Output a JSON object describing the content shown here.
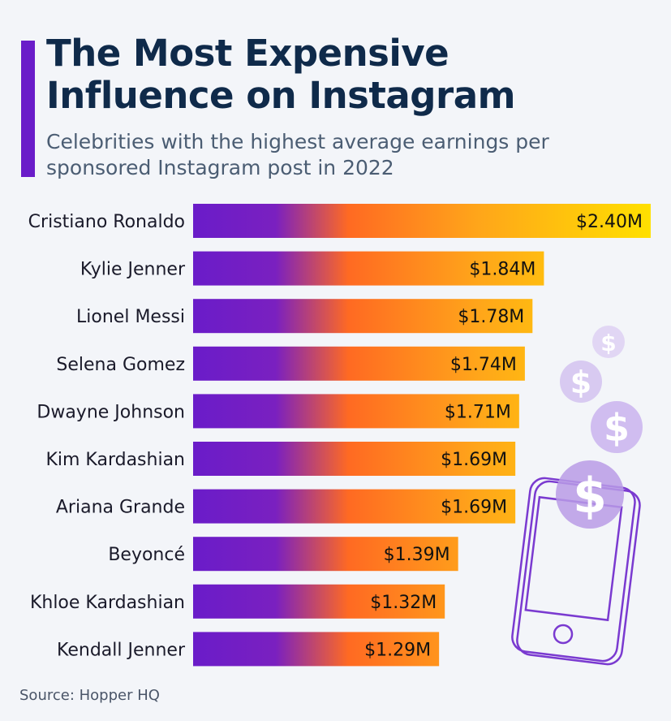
{
  "header": {
    "title": "The Most Expensive Influence on Instagram",
    "subtitle": "Celebrities with the highest average earnings per sponsored Instagram post in 2022"
  },
  "footer": {
    "source": "Source: Hopper HQ"
  },
  "illustration": {
    "icons": [
      "dollar-coin-icon",
      "smartphone-icon"
    ]
  },
  "colors": {
    "accent": "#6a1cc9",
    "gradient_start": "#6a1cc9",
    "gradient_mid": "#ff7a1a",
    "gradient_end": "#ffe000"
  },
  "chart_data": {
    "type": "bar",
    "orientation": "horizontal",
    "title": "The Most Expensive Influence on Instagram",
    "subtitle": "Celebrities with the highest average earnings per sponsored Instagram post in 2022",
    "categories": [
      "Cristiano Ronaldo",
      "Kylie Jenner",
      "Lionel Messi",
      "Selena Gomez",
      "Dwayne Johnson",
      "Kim Kardashian",
      "Ariana Grande",
      "Beyoncé",
      "Khloe Kardashian",
      "Kendall Jenner"
    ],
    "values": [
      2.4,
      1.84,
      1.78,
      1.74,
      1.71,
      1.69,
      1.69,
      1.39,
      1.32,
      1.29
    ],
    "value_labels": [
      "$2.40M",
      "$1.84M",
      "$1.78M",
      "$1.74M",
      "$1.71M",
      "$1.69M",
      "$1.69M",
      "$1.39M",
      "$1.32M",
      "$1.29M"
    ],
    "unit": "USD millions",
    "xlim": [
      0,
      2.4
    ],
    "grid": false,
    "legend": "none",
    "source": "Source: Hopper HQ"
  }
}
